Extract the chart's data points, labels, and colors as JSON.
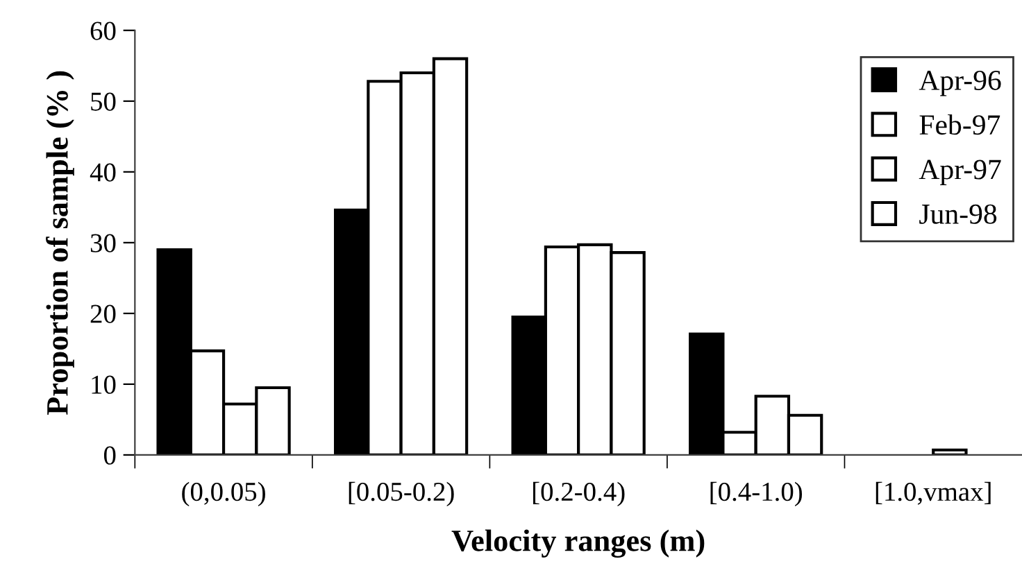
{
  "chart_data": {
    "type": "bar",
    "xlabel": "Velocity ranges (m)",
    "ylabel": "Proportion of sample (% )",
    "categories": [
      "(0,0.05)",
      "[0.05-0.2)",
      "[0.2-0.4)",
      "[0.4-1.0)",
      "[1.0,vmax]"
    ],
    "series": [
      {
        "name": "Apr-96",
        "color": "#000000",
        "values": [
          29.0,
          34.6,
          19.5,
          17.1,
          null
        ]
      },
      {
        "name": "Feb-97",
        "color": "#ffffff",
        "values": [
          14.7,
          52.8,
          29.4,
          3.2,
          null
        ]
      },
      {
        "name": "Apr-97",
        "color": "#ffffff",
        "values": [
          7.2,
          54.0,
          29.7,
          8.3,
          0.7
        ]
      },
      {
        "name": "Jun-98",
        "color": "#ffffff",
        "values": [
          9.5,
          56.0,
          28.6,
          5.6,
          null
        ]
      }
    ],
    "ylim": [
      0,
      60
    ],
    "yticks": [
      0,
      10,
      20,
      30,
      40,
      50,
      60
    ],
    "grid": false,
    "legend": "right"
  }
}
